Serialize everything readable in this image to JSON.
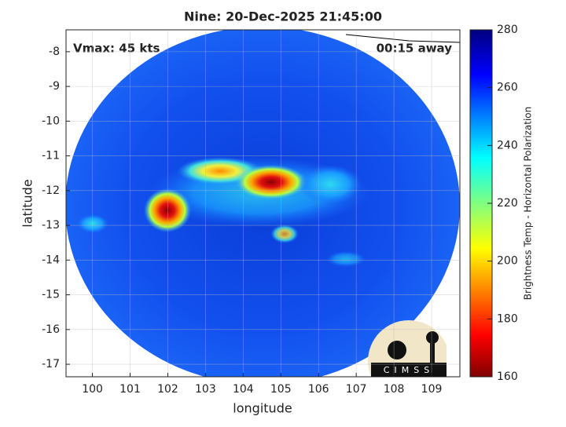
{
  "chart_data": {
    "type": "map",
    "title": "Nine: 20-Dec-2025 21:45:00",
    "annotations": [
      "Vmax: 45 kts",
      "00:15 away"
    ],
    "x_label": "longitude",
    "y_label": "latitude",
    "xlim": [
      99.3,
      109.75
    ],
    "xticks": [
      100,
      101,
      102,
      103,
      104,
      105,
      106,
      107,
      108,
      109
    ],
    "ylim": [
      -17.36,
      -7.37
    ],
    "yticks": [
      -17,
      -16,
      -15,
      -14,
      -13,
      -12,
      -11,
      -10,
      -9,
      -8
    ],
    "grid": true,
    "colorbar": {
      "label": "Brightness Temp - Horizontal Polarization",
      "lim": [
        160,
        280
      ],
      "ticks": [
        160,
        180,
        200,
        220,
        240,
        260,
        280
      ]
    },
    "logo": "CIMSS"
  }
}
